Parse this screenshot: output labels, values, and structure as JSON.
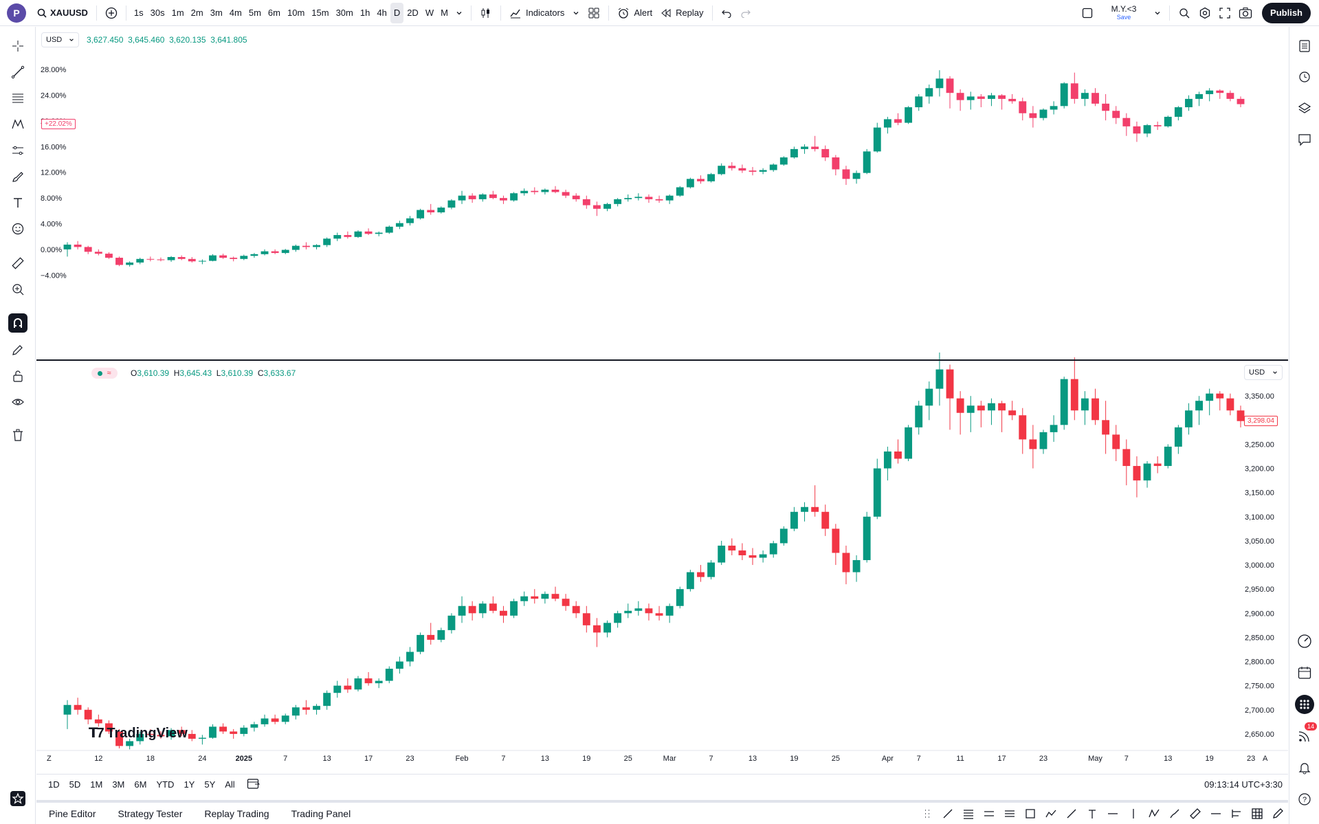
{
  "topbar": {
    "avatar_letter": "P",
    "symbol": "XAUUSD",
    "intervals": [
      "1s",
      "30s",
      "1m",
      "2m",
      "3m",
      "4m",
      "5m",
      "6m",
      "10m",
      "15m",
      "30m",
      "1h",
      "4h",
      "D",
      "2D",
      "W",
      "M"
    ],
    "active_interval": "D",
    "indicators_label": "Indicators",
    "alert_label": "Alert",
    "replay_label": "Replay",
    "layout_name": "M.Y.<3",
    "layout_save": "Save",
    "publish_label": "Publish"
  },
  "colors": {
    "up": "#089981",
    "down_top": "#f23f6b",
    "down_bottom": "#f23645",
    "accent": "#2962ff"
  },
  "top_pane": {
    "currency": "USD",
    "ohlc_values": [
      "3,627.450",
      "3,645.460",
      "3,620.135",
      "3,641.805"
    ],
    "price_badge": "+22.02%",
    "y_ticks": [
      "28.00%",
      "24.00%",
      "20.00%",
      "16.00%",
      "12.00%",
      "8.00%",
      "4.00%",
      "0.00%",
      "−4.00%"
    ]
  },
  "bottom_pane": {
    "currency": "USD",
    "ohlc": {
      "o_label": "O",
      "o": "3,610.39",
      "h_label": "H",
      "h": "3,645.43",
      "l_label": "L",
      "l": "3,610.39",
      "c_label": "C",
      "c": "3,633.67"
    },
    "price_badge": "3,298.04",
    "y_ticks": [
      "3,400.00",
      "3,350.00",
      "3,300.00",
      "3,250.00",
      "3,200.00",
      "3,150.00",
      "3,100.00",
      "3,050.00",
      "3,000.00",
      "2,950.00",
      "2,900.00",
      "2,850.00",
      "2,800.00",
      "2,750.00",
      "2,700.00",
      "2,650.00"
    ]
  },
  "x_axis": {
    "left_label": "Z",
    "ticks": [
      "12",
      "18",
      "24",
      "2025",
      "7",
      "13",
      "17",
      "23",
      "Feb",
      "7",
      "13",
      "19",
      "25",
      "Mar",
      "7",
      "13",
      "19",
      "25",
      "Apr",
      "7",
      "11",
      "17",
      "23",
      "May",
      "7",
      "13",
      "19",
      "23"
    ],
    "right_label": "A"
  },
  "watermark": "TradingView",
  "bottom_range": {
    "items": [
      "1D",
      "5D",
      "1M",
      "3M",
      "6M",
      "YTD",
      "1Y",
      "5Y",
      "All"
    ],
    "clock": "09:13:14 UTC+3:30"
  },
  "bottom_tabs": [
    "Pine Editor",
    "Strategy Tester",
    "Replay Trading",
    "Trading Panel"
  ],
  "notifications_badge": "14",
  "chart_data": {
    "type": "candlestick",
    "title": "",
    "symbol": "XAUUSD",
    "timeframe": "D",
    "ylabel": "",
    "ylim": [
      2620,
      3420
    ],
    "x_range": [
      "Dec 2024",
      "late May 2025"
    ],
    "series": [
      {
        "name": "",
        "ohlc": [
          [
            2690,
            2720,
            2660,
            2710
          ],
          [
            2710,
            2725,
            2690,
            2700
          ],
          [
            2700,
            2705,
            2670,
            2680
          ],
          [
            2680,
            2690,
            2665,
            2672
          ],
          [
            2672,
            2678,
            2650,
            2655
          ],
          [
            2655,
            2660,
            2620,
            2625
          ],
          [
            2625,
            2640,
            2618,
            2635
          ],
          [
            2635,
            2655,
            2628,
            2650
          ],
          [
            2650,
            2660,
            2640,
            2648
          ],
          [
            2648,
            2656,
            2640,
            2645
          ],
          [
            2645,
            2662,
            2638,
            2658
          ],
          [
            2658,
            2665,
            2645,
            2650
          ],
          [
            2650,
            2658,
            2635,
            2640
          ],
          [
            2640,
            2648,
            2628,
            2642
          ],
          [
            2642,
            2670,
            2640,
            2665
          ],
          [
            2665,
            2672,
            2650,
            2655
          ],
          [
            2655,
            2660,
            2640,
            2650
          ],
          [
            2650,
            2668,
            2645,
            2663
          ],
          [
            2663,
            2675,
            2655,
            2670
          ],
          [
            2670,
            2690,
            2665,
            2682
          ],
          [
            2682,
            2690,
            2670,
            2675
          ],
          [
            2675,
            2692,
            2670,
            2688
          ],
          [
            2688,
            2710,
            2680,
            2705
          ],
          [
            2705,
            2720,
            2690,
            2700
          ],
          [
            2700,
            2712,
            2690,
            2708
          ],
          [
            2708,
            2740,
            2700,
            2735
          ],
          [
            2735,
            2760,
            2725,
            2750
          ],
          [
            2750,
            2765,
            2735,
            2742
          ],
          [
            2742,
            2770,
            2738,
            2765
          ],
          [
            2765,
            2778,
            2750,
            2755
          ],
          [
            2755,
            2765,
            2745,
            2760
          ],
          [
            2760,
            2790,
            2755,
            2785
          ],
          [
            2785,
            2810,
            2775,
            2800
          ],
          [
            2800,
            2830,
            2790,
            2820
          ],
          [
            2820,
            2860,
            2815,
            2855
          ],
          [
            2855,
            2880,
            2835,
            2845
          ],
          [
            2845,
            2870,
            2840,
            2865
          ],
          [
            2865,
            2900,
            2858,
            2895
          ],
          [
            2895,
            2935,
            2880,
            2915
          ],
          [
            2915,
            2925,
            2885,
            2900
          ],
          [
            2900,
            2925,
            2890,
            2920
          ],
          [
            2920,
            2935,
            2900,
            2905
          ],
          [
            2905,
            2915,
            2880,
            2895
          ],
          [
            2895,
            2930,
            2890,
            2925
          ],
          [
            2925,
            2945,
            2915,
            2935
          ],
          [
            2935,
            2950,
            2920,
            2930
          ],
          [
            2930,
            2945,
            2920,
            2940
          ],
          [
            2940,
            2955,
            2925,
            2930
          ],
          [
            2930,
            2940,
            2905,
            2915
          ],
          [
            2915,
            2925,
            2890,
            2900
          ],
          [
            2900,
            2915,
            2860,
            2875
          ],
          [
            2875,
            2890,
            2830,
            2860
          ],
          [
            2860,
            2885,
            2850,
            2880
          ],
          [
            2880,
            2905,
            2870,
            2900
          ],
          [
            2900,
            2920,
            2890,
            2905
          ],
          [
            2905,
            2925,
            2895,
            2910
          ],
          [
            2910,
            2920,
            2885,
            2900
          ],
          [
            2900,
            2915,
            2885,
            2895
          ],
          [
            2895,
            2920,
            2880,
            2915
          ],
          [
            2915,
            2955,
            2910,
            2950
          ],
          [
            2950,
            2990,
            2945,
            2985
          ],
          [
            2985,
            3000,
            2965,
            2975
          ],
          [
            2975,
            3010,
            2970,
            3005
          ],
          [
            3005,
            3050,
            3000,
            3040
          ],
          [
            3040,
            3055,
            3020,
            3030
          ],
          [
            3030,
            3045,
            3010,
            3020
          ],
          [
            3020,
            3035,
            3000,
            3015
          ],
          [
            3015,
            3030,
            3005,
            3022
          ],
          [
            3022,
            3050,
            3015,
            3045
          ],
          [
            3045,
            3080,
            3040,
            3075
          ],
          [
            3075,
            3120,
            3070,
            3110
          ],
          [
            3110,
            3130,
            3090,
            3120
          ],
          [
            3120,
            3165,
            3100,
            3110
          ],
          [
            3110,
            3125,
            3060,
            3075
          ],
          [
            3075,
            3085,
            3000,
            3025
          ],
          [
            3025,
            3040,
            2960,
            2985
          ],
          [
            2985,
            3020,
            2965,
            3010
          ],
          [
            3010,
            3110,
            3005,
            3100
          ],
          [
            3100,
            3220,
            3095,
            3200
          ],
          [
            3200,
            3245,
            3175,
            3235
          ],
          [
            3235,
            3260,
            3210,
            3220
          ],
          [
            3220,
            3290,
            3215,
            3285
          ],
          [
            3285,
            3340,
            3270,
            3330
          ],
          [
            3330,
            3380,
            3300,
            3365
          ],
          [
            3365,
            3440,
            3330,
            3405
          ],
          [
            3405,
            3415,
            3280,
            3345
          ],
          [
            3345,
            3360,
            3270,
            3315
          ],
          [
            3315,
            3350,
            3275,
            3330
          ],
          [
            3330,
            3340,
            3285,
            3320
          ],
          [
            3320,
            3345,
            3290,
            3335
          ],
          [
            3335,
            3340,
            3275,
            3320
          ],
          [
            3320,
            3340,
            3300,
            3310
          ],
          [
            3310,
            3325,
            3230,
            3260
          ],
          [
            3260,
            3290,
            3200,
            3240
          ],
          [
            3240,
            3280,
            3230,
            3275
          ],
          [
            3275,
            3310,
            3255,
            3290
          ],
          [
            3290,
            3390,
            3280,
            3385
          ],
          [
            3385,
            3430,
            3300,
            3320
          ],
          [
            3320,
            3360,
            3290,
            3345
          ],
          [
            3345,
            3365,
            3290,
            3300
          ],
          [
            3300,
            3340,
            3230,
            3270
          ],
          [
            3270,
            3290,
            3215,
            3240
          ],
          [
            3240,
            3260,
            3165,
            3205
          ],
          [
            3205,
            3225,
            3140,
            3175
          ],
          [
            3175,
            3215,
            3160,
            3210
          ],
          [
            3210,
            3225,
            3190,
            3205
          ],
          [
            3205,
            3250,
            3200,
            3245
          ],
          [
            3245,
            3290,
            3230,
            3285
          ],
          [
            3285,
            3335,
            3270,
            3320
          ],
          [
            3320,
            3350,
            3290,
            3340
          ],
          [
            3340,
            3365,
            3310,
            3355
          ],
          [
            3355,
            3360,
            3320,
            3345
          ],
          [
            3345,
            3355,
            3310,
            3320
          ],
          [
            3320,
            3330,
            3285,
            3298
          ]
        ]
      }
    ]
  }
}
